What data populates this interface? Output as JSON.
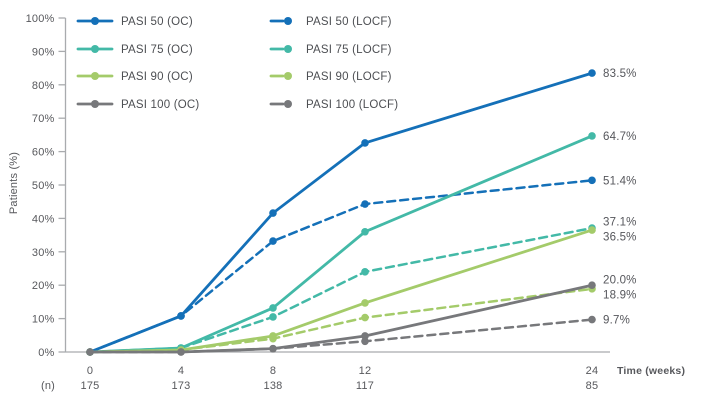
{
  "chart_data": {
    "type": "line",
    "title": "",
    "xlabel": "Time (weeks)",
    "ylabel": "Patients (%)",
    "grid": false,
    "legend_position": "top-left-two-columns",
    "x": [
      0,
      4,
      8,
      12,
      24
    ],
    "x_tick_labels": [
      "0",
      "4",
      "8",
      "12",
      "24"
    ],
    "n_row_label": "(n)",
    "n_values": [
      "175",
      "173",
      "138",
      "117",
      "85"
    ],
    "ylim": [
      0,
      100
    ],
    "y_tick_labels": [
      "0%",
      "10%",
      "20%",
      "30%",
      "40%",
      "50%",
      "60%",
      "70%",
      "80%",
      "90%",
      "100%"
    ],
    "y_tick_values": [
      0,
      10,
      20,
      30,
      40,
      50,
      60,
      70,
      80,
      90,
      100
    ],
    "series": [
      {
        "name": "PASI 50 (OC)",
        "style": "solid",
        "color": "#1470B8",
        "values": [
          0,
          10.8,
          41.6,
          62.6,
          83.5
        ],
        "end_label": "83.5%"
      },
      {
        "name": "PASI 50 (LOCF)",
        "style": "dashed",
        "color": "#1470B8",
        "values": [
          0,
          10.8,
          33.2,
          44.3,
          51.4
        ],
        "end_label": "51.4%"
      },
      {
        "name": "PASI 75 (OC)",
        "style": "solid",
        "color": "#43B9A7",
        "values": [
          0,
          1.2,
          13.2,
          36.0,
          64.7
        ],
        "end_label": "64.7%"
      },
      {
        "name": "PASI 75 (LOCF)",
        "style": "dashed",
        "color": "#43B9A7",
        "values": [
          0,
          1.2,
          10.5,
          24.0,
          37.1
        ],
        "end_label": "37.1%"
      },
      {
        "name": "PASI 90 (OC)",
        "style": "solid",
        "color": "#A4CB6A",
        "values": [
          0,
          0.6,
          4.8,
          14.7,
          36.5
        ],
        "end_label": "36.5%"
      },
      {
        "name": "PASI 90 (LOCF)",
        "style": "dashed",
        "color": "#A4CB6A",
        "values": [
          0,
          0.6,
          4.0,
          10.3,
          18.9
        ],
        "end_label": "18.9%"
      },
      {
        "name": "PASI 100 (OC)",
        "style": "solid",
        "color": "#77787B",
        "values": [
          0,
          0.0,
          1.0,
          4.8,
          20.0
        ],
        "end_label": "20.0%"
      },
      {
        "name": "PASI 100 (LOCF)",
        "style": "dashed",
        "color": "#77787B",
        "values": [
          0,
          0.0,
          1.0,
          3.2,
          9.7
        ],
        "end_label": "9.7%"
      }
    ],
    "legend": {
      "column1": [
        "PASI 50 (OC)",
        "PASI 75 (OC)",
        "PASI 90 (OC)",
        "PASI 100 (OC)"
      ],
      "column2": [
        "PASI 50 (LOCF)",
        "PASI 75 (LOCF)",
        "PASI 90 (LOCF)",
        "PASI 100 (LOCF)"
      ]
    }
  },
  "colors": {
    "axis": "#A9ABAE",
    "tick_text": "#57585C",
    "legend_text": "#4D4F53",
    "end_label_text": "#55565B",
    "background": "#FFFFFF"
  }
}
